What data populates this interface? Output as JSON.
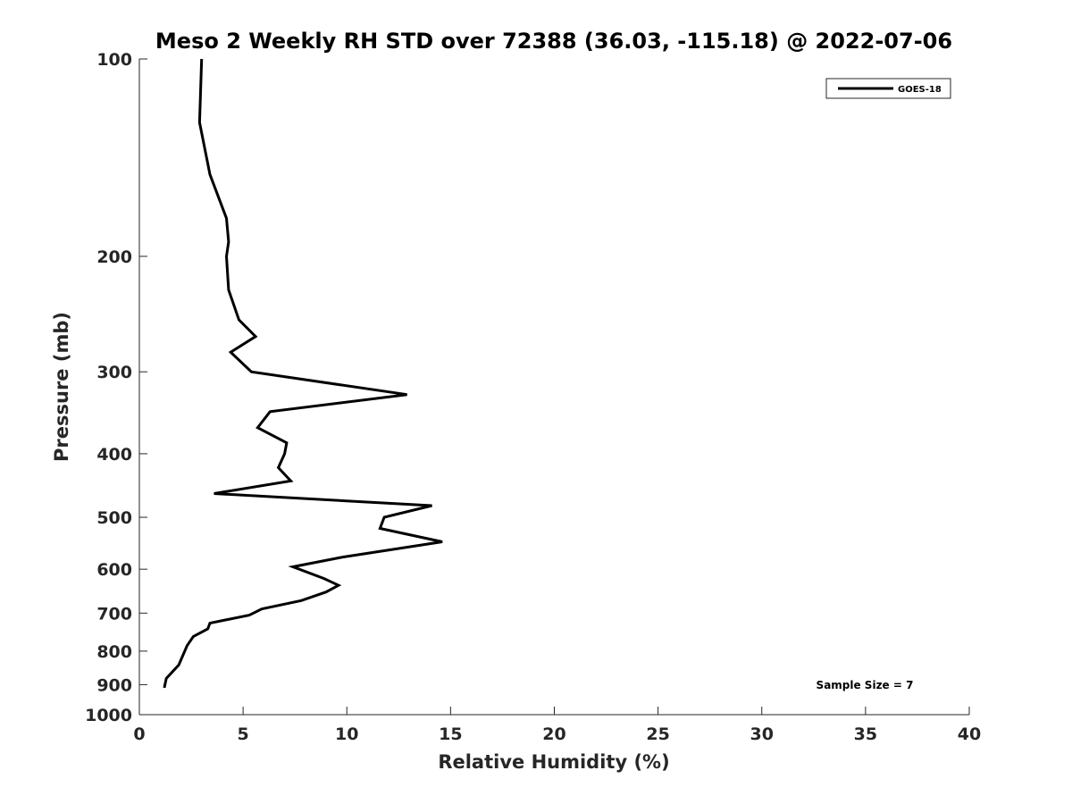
{
  "chart_data": {
    "type": "line",
    "title": "Meso 2 Weekly RH STD over 72388 (36.03, -115.18) @ 2022-07-06",
    "xlabel": "Relative Humidity (%)",
    "ylabel": "Pressure (mb)",
    "xlim": [
      0,
      40
    ],
    "ylim": [
      1000,
      100
    ],
    "y_scale": "log",
    "y_reversed": true,
    "x_ticks": [
      0,
      5,
      10,
      15,
      20,
      25,
      30,
      35,
      40
    ],
    "y_ticks": [
      100,
      200,
      300,
      400,
      500,
      600,
      700,
      800,
      900,
      1000
    ],
    "grid": false,
    "legend_position": "top-right",
    "annotation": "Sample Size = 7",
    "series": [
      {
        "name": "GOES-18",
        "color": "#000000",
        "points": [
          {
            "rh": 3.0,
            "p": 100
          },
          {
            "rh": 2.9,
            "p": 125
          },
          {
            "rh": 3.4,
            "p": 150
          },
          {
            "rh": 4.2,
            "p": 175
          },
          {
            "rh": 4.3,
            "p": 190
          },
          {
            "rh": 4.2,
            "p": 200
          },
          {
            "rh": 4.3,
            "p": 225
          },
          {
            "rh": 4.8,
            "p": 250
          },
          {
            "rh": 5.6,
            "p": 265
          },
          {
            "rh": 4.4,
            "p": 280
          },
          {
            "rh": 5.4,
            "p": 300
          },
          {
            "rh": 12.9,
            "p": 325
          },
          {
            "rh": 6.3,
            "p": 345
          },
          {
            "rh": 5.7,
            "p": 365
          },
          {
            "rh": 7.1,
            "p": 385
          },
          {
            "rh": 7.0,
            "p": 400
          },
          {
            "rh": 6.7,
            "p": 420
          },
          {
            "rh": 7.3,
            "p": 440
          },
          {
            "rh": 3.6,
            "p": 460
          },
          {
            "rh": 14.1,
            "p": 480
          },
          {
            "rh": 11.8,
            "p": 500
          },
          {
            "rh": 11.6,
            "p": 520
          },
          {
            "rh": 14.6,
            "p": 545
          },
          {
            "rh": 9.8,
            "p": 575
          },
          {
            "rh": 7.4,
            "p": 595
          },
          {
            "rh": 8.9,
            "p": 620
          },
          {
            "rh": 9.6,
            "p": 635
          },
          {
            "rh": 9.0,
            "p": 650
          },
          {
            "rh": 7.8,
            "p": 670
          },
          {
            "rh": 5.9,
            "p": 690
          },
          {
            "rh": 5.3,
            "p": 705
          },
          {
            "rh": 3.4,
            "p": 725
          },
          {
            "rh": 3.3,
            "p": 740
          },
          {
            "rh": 2.6,
            "p": 760
          },
          {
            "rh": 2.3,
            "p": 785
          },
          {
            "rh": 1.9,
            "p": 840
          },
          {
            "rh": 1.3,
            "p": 880
          },
          {
            "rh": 1.2,
            "p": 910
          }
        ]
      }
    ]
  }
}
